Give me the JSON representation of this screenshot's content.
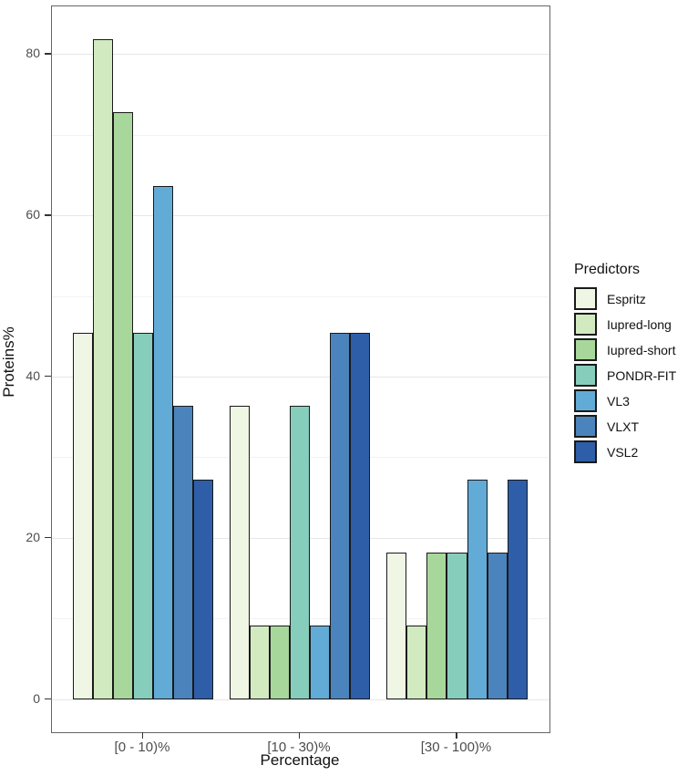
{
  "chart_data": {
    "type": "bar",
    "title": "",
    "xlabel": "Percentage",
    "ylabel": "Proteins%",
    "legend_title": "Predictors",
    "legend_position": "right",
    "grid": true,
    "categories": [
      "[0 - 10)%",
      "[10 - 30)%",
      "[30 - 100)%"
    ],
    "series": [
      {
        "name": "Espritz",
        "color": "#eff7e4",
        "values": [
          45.45,
          36.36,
          18.18
        ]
      },
      {
        "name": "Iupred-long",
        "color": "#d2eac0",
        "values": [
          81.82,
          9.09,
          9.09
        ]
      },
      {
        "name": "Iupred-short",
        "color": "#a8d79b",
        "values": [
          72.73,
          9.09,
          18.18
        ]
      },
      {
        "name": "PONDR-FIT",
        "color": "#87cdbb",
        "values": [
          45.45,
          36.36,
          18.18
        ]
      },
      {
        "name": "VL3",
        "color": "#62abd7",
        "values": [
          63.64,
          9.09,
          27.27
        ]
      },
      {
        "name": "VLXT",
        "color": "#4b84bc",
        "values": [
          36.36,
          45.45,
          18.18
        ]
      },
      {
        "name": "VSL2",
        "color": "#2e5ea7",
        "values": [
          27.27,
          45.45,
          27.27
        ]
      }
    ],
    "y_ticks": [
      0,
      20,
      40,
      60,
      80
    ],
    "y_minor_ticks": [
      10,
      30,
      50,
      70
    ],
    "ylim": [
      -4.1,
      85.9
    ],
    "style": {
      "bar_outline": "#1a1a1a",
      "grid_major": "#e7e7e7",
      "grid_minor": "#f2f2f2",
      "panel_border": "#666666",
      "tick_text": "#4d4d4d"
    }
  }
}
